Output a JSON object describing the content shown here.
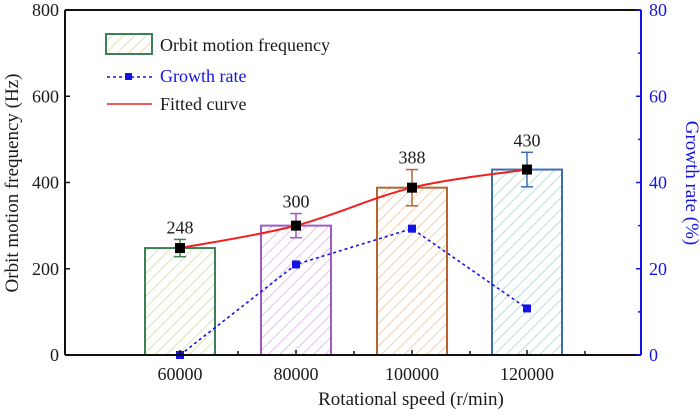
{
  "chart_data": {
    "type": "bar",
    "title": "",
    "xlabel": "Rotational speed (r/min)",
    "ylabel": "Orbit motion frequency (Hz)",
    "y2label": "Growth rate (%)",
    "categories": [
      "60000",
      "80000",
      "100000",
      "120000"
    ],
    "ylim": [
      0,
      800
    ],
    "y2lim": [
      0,
      80
    ],
    "yticks": [
      0,
      200,
      400,
      600,
      800
    ],
    "y2ticks": [
      0,
      20,
      40,
      60,
      80
    ],
    "y2minor_ticks": [
      10,
      30,
      50,
      70
    ],
    "grid": false,
    "legend_position": "top-left",
    "series": [
      {
        "name": "Orbit motion frequency",
        "type": "bar",
        "axis": "left",
        "values": [
          248,
          300,
          388,
          430
        ],
        "errors": [
          20,
          28,
          42,
          40
        ],
        "data_labels": [
          "248",
          "300",
          "388",
          "430"
        ],
        "edge_colors": [
          "#3f7f55",
          "#9a5cc8",
          "#b5642e",
          "#3d6db3"
        ],
        "hatch_colors": [
          "#d3dca6",
          "#d9b3df",
          "#f1c49a",
          "#a9d6d8"
        ]
      },
      {
        "name": "Growth rate",
        "type": "line",
        "style": "dotted",
        "marker": "square",
        "axis": "right",
        "color": "#1414e6",
        "values": [
          0,
          21.0,
          29.3,
          10.8
        ]
      },
      {
        "name": "Fitted curve",
        "type": "line",
        "style": "solid",
        "axis": "left",
        "color": "#f02020",
        "values": [
          248,
          300,
          388,
          430
        ]
      }
    ]
  }
}
